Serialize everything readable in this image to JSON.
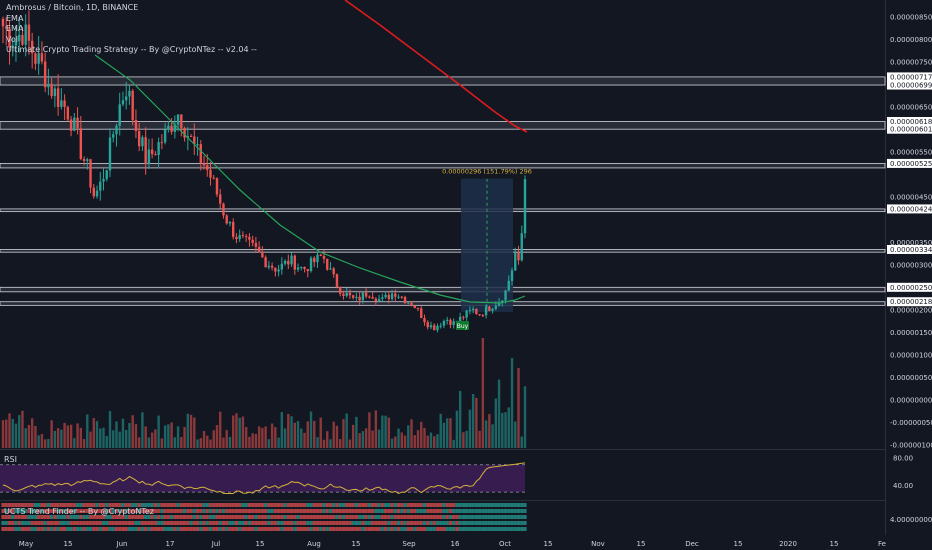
{
  "legend": {
    "title": "Ambrosus / Bitcoin, 1D, BINANCE",
    "line1": "EMA",
    "line2": "EMA",
    "line3": "Vol",
    "line4": "Ultimate Crypto Trading Strategy -- By @CryptoNTez -- v2.04 --"
  },
  "rsi_label": "RSI",
  "ucts_label": "UCTS Trend Finder -- By @CryptoNTez",
  "colors": {
    "bg": "#131722",
    "up": "#26a69a",
    "down": "#ef5350",
    "ema_slow": "#e01b1b",
    "ema_fast": "#26a65b",
    "rsi_line": "#d4b13c",
    "rsi_band": "#3c1e54",
    "measure": "#1e2f4a",
    "zone": "#d1d4dc",
    "text": "#d1d4dc",
    "axis": "#131722",
    "highlight_label": "#ffffff",
    "buy": "#0f7a2d"
  },
  "chart_data": {
    "type": "candlestick",
    "symbol": "Ambrosus / Bitcoin",
    "interval": "1D",
    "exchange": "BINANCE",
    "x_tick_labels": [
      "May",
      "15",
      "Jun",
      "17",
      "Jul",
      "15",
      "Aug",
      "15",
      "Sep",
      "16",
      "Oct",
      "15",
      "Nov",
      "15",
      "Dec",
      "15",
      "2020",
      "15",
      "Fe"
    ],
    "price_ticks": [
      "0.00000850",
      "0.00000800",
      "0.00000750",
      "0.00000650",
      "0.00000550",
      "0.00000450",
      "0.00000350",
      "0.00000300",
      "0.00000200",
      "0.00000150",
      "0.00000100",
      "0.00000050",
      "0.00000000",
      "-0.00000050",
      "-0.00000100"
    ],
    "hidden_ticks": [
      "0.00000700",
      "0.00000600",
      "0.00000500",
      "0.00000400",
      "0.00000250"
    ],
    "price_ylim": [
      -1e-06,
      8.8e-06
    ],
    "highlighted_levels": [
      {
        "label": "0.00000717",
        "value": 7.17e-06
      },
      {
        "label": "0.00000699",
        "value": 6.99e-06
      },
      {
        "label": "0.00000618",
        "value": 6.18e-06
      },
      {
        "label": "0.00000601",
        "value": 6.01e-06
      },
      {
        "label": "0.00000525",
        "value": 5.25e-06
      },
      {
        "label": "0.00000424",
        "value": 4.24e-06
      },
      {
        "label": "0.00000334",
        "value": 3.34e-06
      },
      {
        "label": "0.00000250",
        "value": 2.5e-06
      },
      {
        "label": "0.00000218",
        "value": 2.18e-06
      }
    ],
    "zones": [
      [
        7.17e-06,
        6.99e-06
      ],
      [
        6.18e-06,
        6.01e-06
      ],
      [
        5.25e-06,
        5.15e-06
      ],
      [
        4.24e-06,
        4.18e-06
      ],
      [
        3.34e-06,
        3.28e-06
      ],
      [
        2.5e-06,
        2.4e-06
      ],
      [
        2.18e-06,
        2.1e-06
      ]
    ],
    "measure": {
      "label": "0.00000296 (151.79%) 296",
      "from": 1.95e-06,
      "to": 4.91e-06
    },
    "buy_label": "Buy",
    "rsi_ticks": [
      "80.00",
      "40.00"
    ],
    "rsi_levels": [
      70,
      30
    ],
    "ucts_ticks": [
      "4.00000000"
    ],
    "ohlc_anchor_closes": [
      8.3e-06,
      8.1e-06,
      8e-06,
      8.2e-06,
      7.9e-06,
      7.6e-06,
      7.4e-06,
      7e-06,
      6.8e-06,
      6.6e-06,
      6.4e-06,
      6e-06,
      5.5e-06,
      5.1e-06,
      4.5e-06,
      4.8e-06,
      5.3e-06,
      6e-06,
      6.6e-06,
      7e-06,
      6.2e-06,
      5.8e-06,
      5.3e-06,
      5.5e-06,
      5.7e-06,
      5.9e-06,
      6.2e-06,
      6.4e-06,
      6e-06,
      5.7e-06,
      5.4e-06,
      5.2e-06,
      4.9e-06,
      4.5e-06,
      4.1e-06,
      3.8e-06,
      3.6e-06,
      3.5e-06,
      3.4e-06,
      3.3e-06,
      3.1e-06,
      3e-06,
      2.9e-06,
      3e-06,
      3.1e-06,
      3e-06,
      2.9e-06,
      3e-06,
      3.1e-06,
      3.2e-06,
      2.9e-06,
      2.6e-06,
      2.4e-06,
      2.3e-06,
      2.2e-06,
      2.3e-06,
      2.4e-06,
      2.3e-06,
      2.2e-06,
      2.3e-06,
      2.4e-06,
      2.3e-06,
      2.2e-06,
      2.1e-06,
      1.9e-06,
      1.7e-06,
      1.6e-06,
      1.7e-06,
      1.8e-06,
      1.7e-06,
      1.8e-06,
      1.9e-06,
      2e-06,
      1.9e-06,
      2e-06,
      2.1e-06,
      2.2e-06,
      2.4e-06,
      2.9e-06,
      3.6e-06,
      4.8e-06
    ]
  }
}
